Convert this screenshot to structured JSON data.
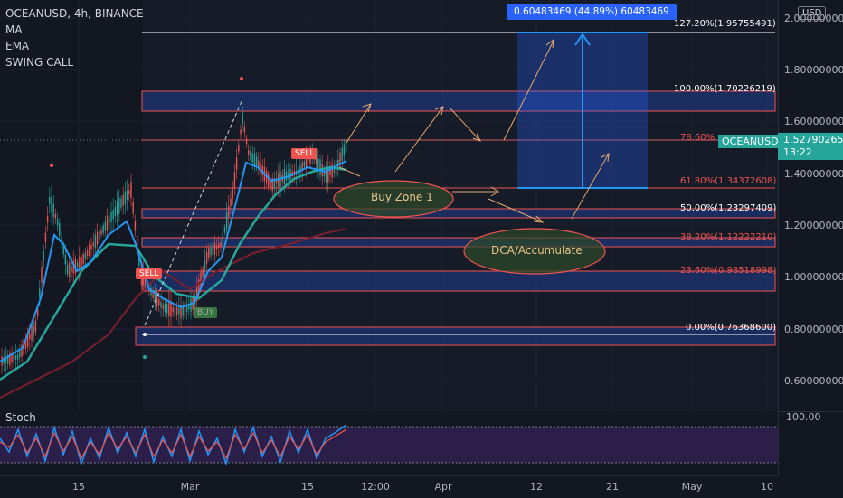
{
  "legend": {
    "symbol": "OCEANUSD, 4h, BINANCE",
    "indicators": [
      "MA",
      "EMA",
      "SWING CALL"
    ]
  },
  "currency_button": "USD",
  "price_axis": [
    "2.00000000",
    "1.80000000",
    "1.60000000",
    "1.40000000",
    "1.20000000",
    "1.00000000",
    "0.80000000",
    "0.60000000"
  ],
  "time_axis": [
    "15",
    "Mar",
    "15",
    "12:00",
    "Apr",
    "12",
    "21",
    "May",
    "10"
  ],
  "current_price": {
    "symbol": "OCEANUSD",
    "price": "1.52790265",
    "countdown": "13:22"
  },
  "measure_label": "0.60483469 (44.89%) 60483469",
  "fib_levels": [
    {
      "label": "127.20%(1.95755491)",
      "color": "#ffffff"
    },
    {
      "label": "100.00%(1.70226219)",
      "color": "#ffffff"
    },
    {
      "label": "78.60%",
      "color": "#ef5350"
    },
    {
      "label": "61.80%(1.34372608)",
      "color": "#ef5350"
    },
    {
      "label": "50.00%(1.23297409)",
      "color": "#ffffff"
    },
    {
      "label": "38.20%(1.12222210)",
      "color": "#ef5350"
    },
    {
      "label": "23.60%(0.98518998)",
      "color": "#ef5350"
    },
    {
      "label": "0.00%(0.76368600)",
      "color": "#ffffff"
    }
  ],
  "zones": {
    "buy_zone": "Buy Zone 1",
    "dca_zone": "DCA/Accumulate"
  },
  "signals": {
    "sell": "SELL",
    "buy": "BUY"
  },
  "oscillator": {
    "name": "Stoch",
    "level": "100.00"
  },
  "colors": {
    "background": "#131722",
    "ema": "#26a69a",
    "ma": "#2196f3",
    "bull": "#26a69a",
    "bear": "#ef5350"
  }
}
